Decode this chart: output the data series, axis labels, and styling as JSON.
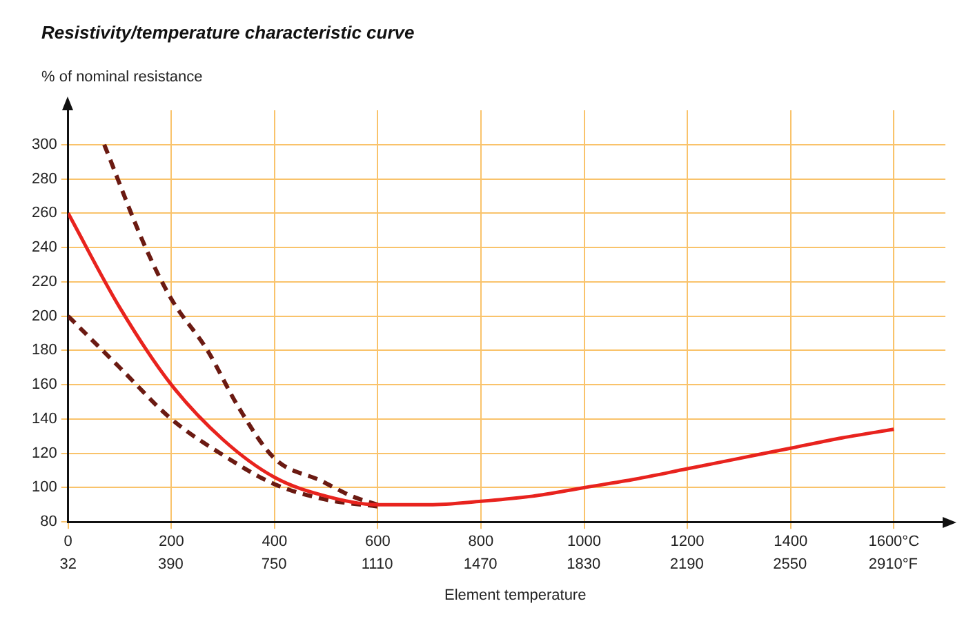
{
  "chart_data": {
    "type": "line",
    "title": "Resistivity/temperature characteristic curve",
    "ylabel": "% of nominal resistance",
    "xlabel": "Element temperature",
    "xlim": [
      0,
      1700
    ],
    "ylim": [
      80,
      320
    ],
    "xticks": [
      0,
      200,
      400,
      600,
      800,
      1000,
      1200,
      1400,
      {
        "value": 1600,
        "label": "1600°C"
      }
    ],
    "x2lim": [
      32,
      3092
    ],
    "x2ticks": [
      32,
      390,
      750,
      1110,
      1470,
      1830,
      2190,
      2550,
      {
        "value": 2910,
        "label": "2910°F"
      }
    ],
    "yticks": [
      80,
      100,
      120,
      140,
      160,
      180,
      200,
      220,
      240,
      260,
      280,
      300
    ],
    "grid": true,
    "legend": false,
    "marker": "none",
    "series": [
      {
        "color": "#e8231e",
        "line_style": "solid",
        "x": [
          0,
          100,
          200,
          300,
          400,
          500,
          600,
          700,
          800,
          900,
          1000,
          1100,
          1200,
          1300,
          1400,
          1500,
          1600
        ],
        "values": [
          260,
          205,
          160,
          128,
          106,
          95,
          90,
          90,
          92,
          95,
          100,
          105,
          111,
          117,
          123,
          129,
          134
        ]
      },
      {
        "color": "#6b1a12",
        "line_style": "dashed",
        "x": [
          70,
          150,
          200,
          270,
          330,
          400,
          490,
          550,
          600
        ],
        "values": [
          300,
          240,
          210,
          180,
          147,
          117,
          104,
          95,
          90
        ]
      },
      {
        "color": "#6b1a12",
        "line_style": "dashed",
        "x": [
          0,
          100,
          200,
          300,
          400,
          500,
          600
        ],
        "values": [
          200,
          170,
          140,
          119,
          102,
          93,
          89
        ]
      }
    ]
  }
}
